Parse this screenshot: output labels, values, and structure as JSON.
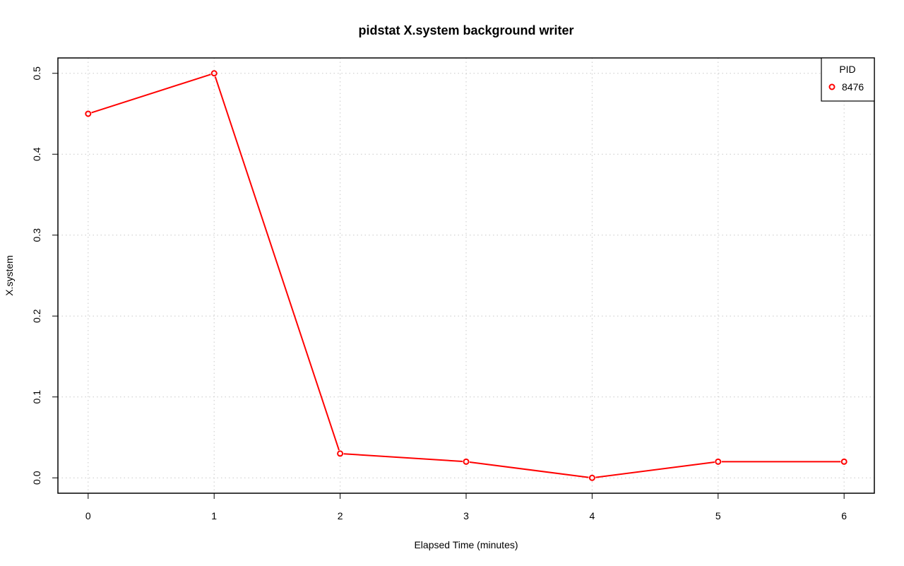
{
  "chart_data": {
    "type": "line",
    "title": "pidstat X.system background writer",
    "xlabel": "Elapsed Time (minutes)",
    "ylabel": "X.system",
    "xlim": [
      -0.24,
      6.24
    ],
    "ylim": [
      -0.019,
      0.519
    ],
    "x_ticks": [
      0,
      1,
      2,
      3,
      4,
      5,
      6
    ],
    "y_ticks": [
      0.0,
      0.1,
      0.2,
      0.3,
      0.4,
      0.5
    ],
    "x_tick_labels": [
      "0",
      "1",
      "2",
      "3",
      "4",
      "5",
      "6"
    ],
    "y_tick_labels": [
      "0.0",
      "0.1",
      "0.2",
      "0.3",
      "0.4",
      "0.5"
    ],
    "grid": true,
    "legend": {
      "title": "PID",
      "position": "top-right"
    },
    "series": [
      {
        "name": "8476",
        "color": "#ff0000",
        "marker": "open-circle",
        "x": [
          0,
          1,
          2,
          3,
          4,
          5,
          6
        ],
        "values": [
          0.45,
          0.5,
          0.03,
          0.02,
          0.0,
          0.02,
          0.02
        ]
      }
    ]
  }
}
